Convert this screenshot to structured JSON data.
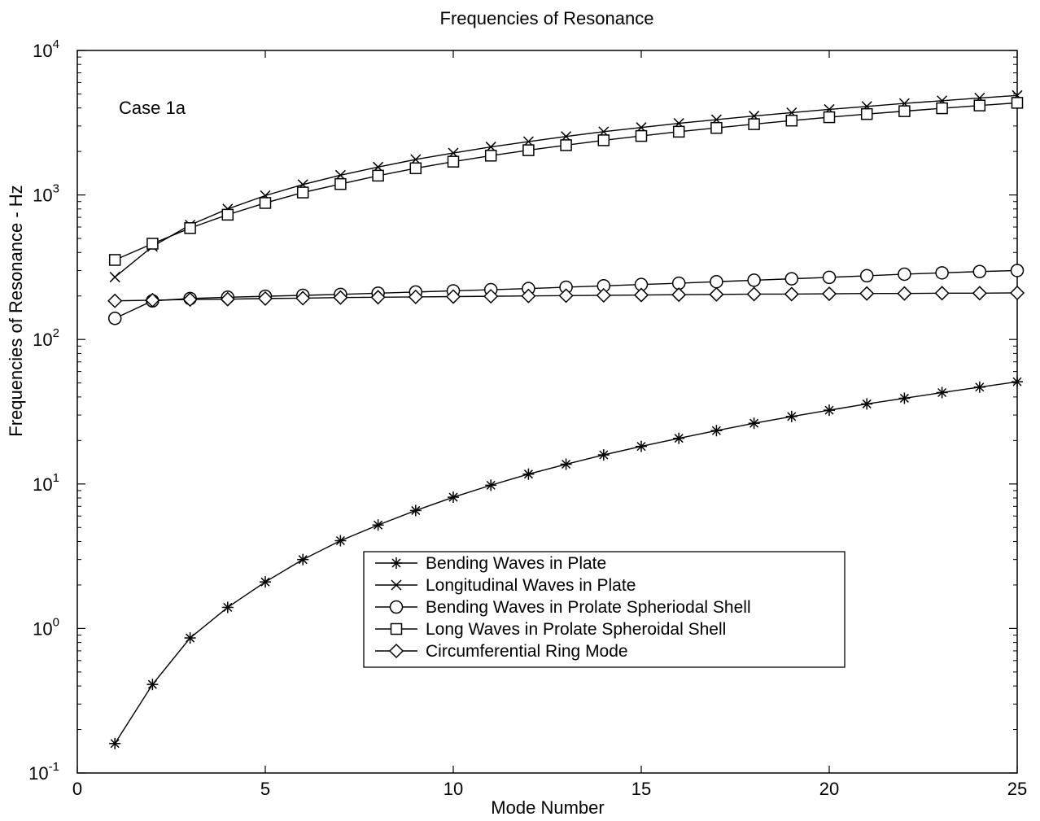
{
  "chart_data": {
    "type": "line",
    "title": "Frequencies of Resonance",
    "xlabel": "Mode Number",
    "ylabel": "Frequencies of Resonance - Hz",
    "annotation": "Case 1a",
    "x_scale": "linear",
    "y_scale": "log",
    "xlim": [
      0,
      25
    ],
    "ylim": [
      0.1,
      10000
    ],
    "x_ticks": [
      0,
      5,
      10,
      15,
      20,
      25
    ],
    "x_tick_labels": [
      "0",
      "5",
      "10",
      "15",
      "20",
      "25"
    ],
    "y_ticks": [
      0.1,
      1,
      10,
      100,
      1000,
      10000
    ],
    "y_tick_base": "10",
    "y_tick_exponents": [
      "-1",
      "0",
      "1",
      "2",
      "3",
      "4"
    ],
    "grid": false,
    "legend_position": "lower-center",
    "x": [
      1,
      2,
      3,
      4,
      5,
      6,
      7,
      8,
      9,
      10,
      11,
      12,
      13,
      14,
      15,
      16,
      17,
      18,
      19,
      20,
      21,
      22,
      23,
      24,
      25
    ],
    "series": [
      {
        "name": "Bending Waves in Plate",
        "marker": "asterisk",
        "values": [
          0.16,
          0.41,
          0.86,
          1.4,
          2.1,
          3.0,
          4.05,
          5.2,
          6.55,
          8.1,
          9.8,
          11.7,
          13.7,
          15.9,
          18.2,
          20.7,
          23.4,
          26.3,
          29.3,
          32.4,
          35.8,
          39.2,
          42.9,
          46.8,
          51.0
        ]
      },
      {
        "name": "Longitudinal Waves in Plate",
        "marker": "x",
        "values": [
          270,
          440,
          620,
          800,
          990,
          1180,
          1370,
          1560,
          1760,
          1950,
          2150,
          2340,
          2540,
          2740,
          2930,
          3130,
          3320,
          3520,
          3710,
          3910,
          4100,
          4300,
          4490,
          4690,
          4880
        ]
      },
      {
        "name": "Bending Waves in Prolate Spheriodal Shell",
        "marker": "circle",
        "values": [
          140,
          185,
          192,
          196,
          199,
          202,
          205,
          209,
          213,
          217,
          221,
          225,
          230,
          235,
          240,
          245,
          251,
          257,
          263,
          269,
          276,
          283,
          289,
          295,
          300
        ]
      },
      {
        "name": "Long Waves in Prolate Spheroidal Shell",
        "marker": "square",
        "values": [
          355,
          460,
          590,
          730,
          880,
          1040,
          1190,
          1360,
          1530,
          1700,
          1870,
          2040,
          2210,
          2390,
          2560,
          2740,
          2910,
          3090,
          3270,
          3450,
          3630,
          3800,
          3980,
          4160,
          4340
        ]
      },
      {
        "name": "Circumferential Ring Mode",
        "marker": "diamond",
        "values": [
          185,
          187,
          189,
          190,
          192,
          193,
          195,
          196,
          197,
          198,
          199,
          200,
          201,
          202,
          203,
          204,
          205,
          206,
          206,
          207,
          208,
          208,
          209,
          209,
          210
        ]
      }
    ]
  }
}
